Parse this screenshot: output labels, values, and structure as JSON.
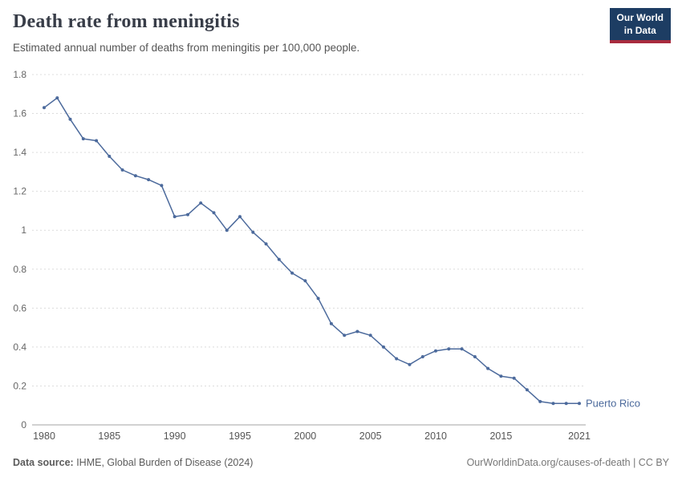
{
  "header": {
    "title": "Death rate from meningitis",
    "subtitle": "Estimated annual number of deaths from meningitis per 100,000 people.",
    "logo": {
      "line1": "Our World",
      "line2": "in Data"
    }
  },
  "chart_data": {
    "type": "line",
    "title": "Death rate from meningitis",
    "xlabel": "",
    "ylabel": "",
    "xlim": [
      1980,
      2021
    ],
    "ylim": [
      0,
      1.8
    ],
    "x_ticks": [
      1980,
      1985,
      1990,
      1995,
      2000,
      2005,
      2010,
      2015,
      2021
    ],
    "y_ticks": [
      0,
      0.2,
      0.4,
      0.6,
      0.8,
      1,
      1.2,
      1.4,
      1.6,
      1.8
    ],
    "grid": true,
    "legend_position": "end-of-line",
    "line_color": "#4C6A9C",
    "series": [
      {
        "name": "Puerto Rico",
        "color": "#4C6A9C",
        "x": [
          1980,
          1981,
          1982,
          1983,
          1984,
          1985,
          1986,
          1987,
          1988,
          1989,
          1990,
          1991,
          1992,
          1993,
          1994,
          1995,
          1996,
          1997,
          1998,
          1999,
          2000,
          2001,
          2002,
          2003,
          2004,
          2005,
          2006,
          2007,
          2008,
          2009,
          2010,
          2011,
          2012,
          2013,
          2014,
          2015,
          2016,
          2017,
          2018,
          2019,
          2020,
          2021
        ],
        "values": [
          1.63,
          1.68,
          1.57,
          1.47,
          1.46,
          1.38,
          1.31,
          1.28,
          1.26,
          1.23,
          1.07,
          1.08,
          1.14,
          1.09,
          1.0,
          1.07,
          0.99,
          0.93,
          0.85,
          0.78,
          0.74,
          0.65,
          0.52,
          0.46,
          0.48,
          0.46,
          0.4,
          0.34,
          0.31,
          0.35,
          0.38,
          0.39,
          0.39,
          0.35,
          0.29,
          0.25,
          0.24,
          0.18,
          0.12,
          0.11,
          0.11,
          0.11
        ]
      }
    ]
  },
  "footer": {
    "source_label": "Data source:",
    "source_text": " IHME, Global Burden of Disease (2024)",
    "credit": "OurWorldinData.org/causes-of-death | CC BY"
  }
}
